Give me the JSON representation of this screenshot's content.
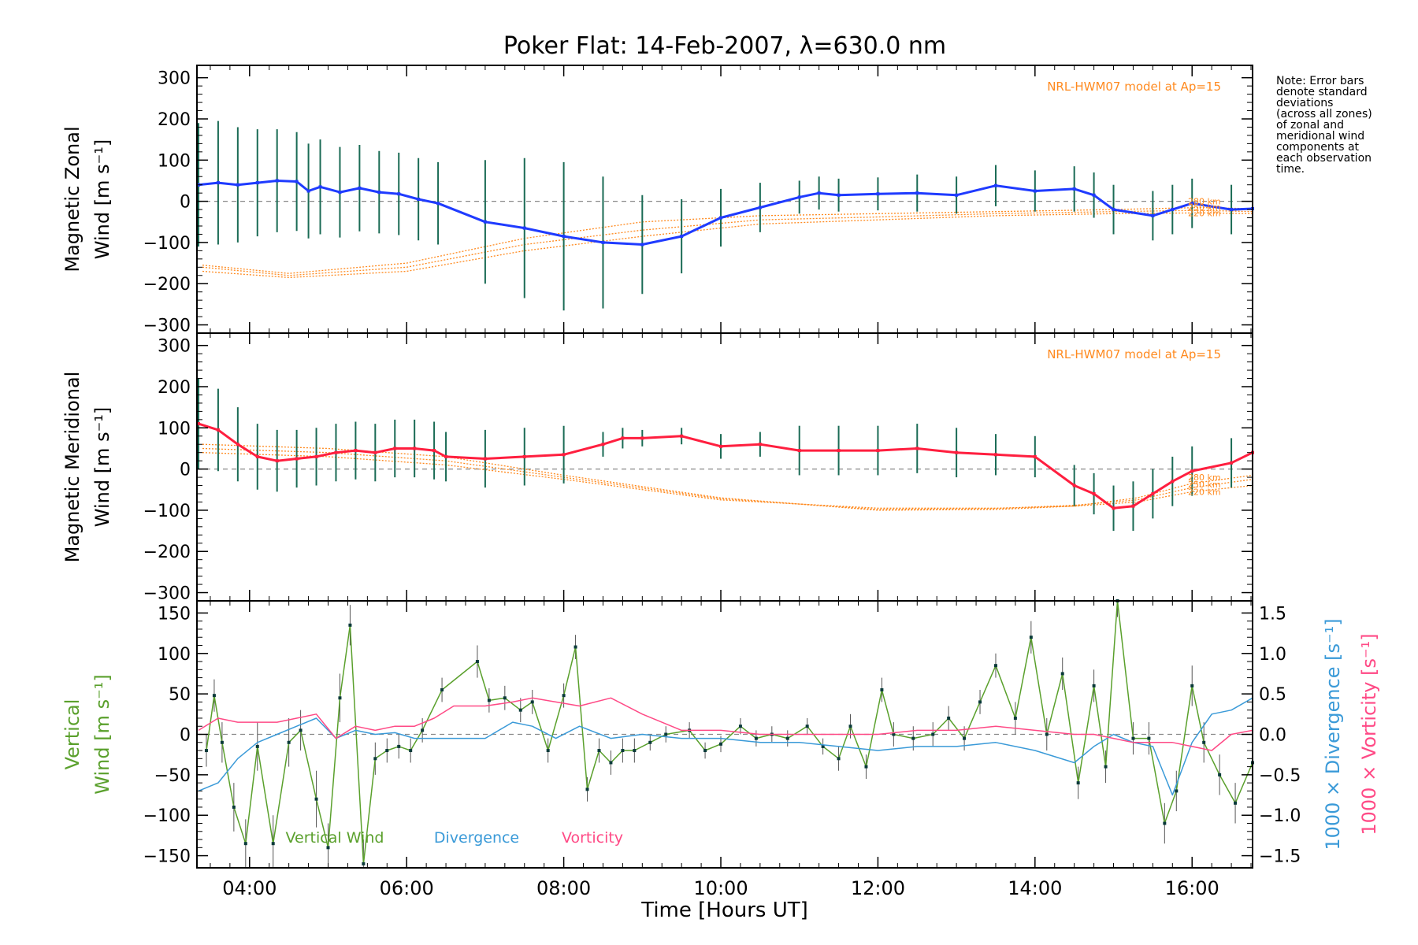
{
  "chart_data": {
    "type": "line",
    "title": "Poker Flat: 14-Feb-2007, λ=630.0 nm",
    "xlabel": "Time [Hours UT]",
    "xlim": [
      3.33,
      16.77
    ],
    "xticks": [
      4,
      6,
      8,
      10,
      12,
      14,
      16
    ],
    "xtick_labels": [
      "04:00",
      "06:00",
      "08:00",
      "10:00",
      "12:00",
      "14:00",
      "16:00"
    ],
    "note_lines": [
      "Note: Error bars",
      "denote standard",
      "deviations",
      "(across all zones)",
      "of zonal and",
      "meridional wind",
      "components at",
      "each observation",
      "time."
    ],
    "colors": {
      "zonal": "#1f3bff",
      "meridional": "#ff1f3f",
      "vertical": "#5aa02c",
      "divergence": "#3a9ad8",
      "vorticity": "#ff4a86",
      "model": "#ff8a1f",
      "errorbar": "#1a6b55"
    },
    "panels": [
      {
        "id": "zonal",
        "ylabel_line1": "Magnetic Zonal",
        "ylabel_line2": "Wind [m s⁻¹]",
        "ylim": [
          -320,
          330
        ],
        "yticks": [
          300,
          200,
          100,
          0,
          -100,
          -200,
          -300
        ],
        "ytick_labels": [
          "300",
          "200",
          "100",
          "0",
          "−100",
          "−200",
          "−300"
        ],
        "model_label": "NRL-HWM07 model at Ap=15",
        "model_heights": [
          "280 km",
          "250 km",
          "220 km"
        ],
        "series": [
          {
            "name": "Zonal wind",
            "x": [
              3.35,
              3.6,
              3.85,
              4.1,
              4.35,
              4.6,
              4.75,
              4.9,
              5.15,
              5.4,
              5.65,
              5.9,
              6.15,
              6.4,
              7,
              7.5,
              8,
              8.5,
              9,
              9.5,
              10,
              10.5,
              11,
              11.25,
              11.5,
              12,
              12.5,
              13,
              13.5,
              14,
              14.5,
              14.75,
              15,
              15.5,
              15.75,
              16,
              16.5,
              16.77
            ],
            "y": [
              40,
              45,
              40,
              45,
              50,
              48,
              25,
              35,
              22,
              32,
              22,
              18,
              5,
              -5,
              -50,
              -65,
              -85,
              -100,
              -105,
              -85,
              -40,
              -15,
              10,
              20,
              15,
              18,
              20,
              15,
              38,
              25,
              30,
              15,
              -20,
              -35,
              -20,
              -5,
              -20,
              -18
            ],
            "err": [
              150,
              150,
              140,
              130,
              125,
              120,
              115,
              115,
              110,
              105,
              100,
              100,
              100,
              100,
              150,
              170,
              180,
              160,
              120,
              90,
              70,
              60,
              40,
              40,
              40,
              40,
              45,
              45,
              50,
              50,
              55,
              55,
              60,
              60,
              60,
              60,
              60,
              60
            ]
          }
        ],
        "model_curves": [
          {
            "height": "280 km",
            "x": [
              3.4,
              4.5,
              6,
              7.5,
              9,
              10.5,
              12,
              13.5,
              15,
              16.1,
              16.77
            ],
            "y": [
              -155,
              -175,
              -150,
              -90,
              -50,
              -35,
              -30,
              -25,
              -20,
              -15,
              -18
            ]
          },
          {
            "height": "250 km",
            "x": [
              3.4,
              4.5,
              6,
              7.5,
              9,
              10.5,
              12,
              13.5,
              15,
              16.1,
              16.77
            ],
            "y": [
              -160,
              -180,
              -160,
              -105,
              -70,
              -45,
              -38,
              -30,
              -25,
              -22,
              -25
            ]
          },
          {
            "height": "220 km",
            "x": [
              3.4,
              4.5,
              6,
              7.5,
              9,
              10.5,
              12,
              13.5,
              15,
              16.1,
              16.77
            ],
            "y": [
              -170,
              -185,
              -170,
              -120,
              -85,
              -55,
              -45,
              -35,
              -30,
              -28,
              -30
            ]
          }
        ]
      },
      {
        "id": "meridional",
        "ylabel_line1": "Magnetic Meridional",
        "ylabel_line2": "Wind [m s⁻¹]",
        "ylim": [
          -320,
          330
        ],
        "yticks": [
          300,
          200,
          100,
          0,
          -100,
          -200,
          -300
        ],
        "ytick_labels": [
          "300",
          "200",
          "100",
          "0",
          "−100",
          "−200",
          "−300"
        ],
        "model_label": "NRL-HWM07 model at Ap=15",
        "model_heights": [
          "280 km",
          "250 km",
          "220 km"
        ],
        "series": [
          {
            "name": "Meridional wind",
            "x": [
              3.35,
              3.6,
              3.85,
              4.1,
              4.35,
              4.6,
              4.85,
              5.1,
              5.35,
              5.6,
              5.85,
              6.1,
              6.35,
              6.5,
              7,
              7.5,
              8,
              8.5,
              8.75,
              9,
              9.5,
              10,
              10.5,
              11,
              11.5,
              12,
              12.5,
              13,
              13.5,
              14,
              14.5,
              14.75,
              15,
              15.25,
              15.5,
              15.75,
              16,
              16.5,
              16.77
            ],
            "y": [
              110,
              95,
              60,
              30,
              20,
              25,
              30,
              40,
              45,
              40,
              50,
              50,
              45,
              30,
              25,
              30,
              35,
              60,
              75,
              75,
              80,
              55,
              60,
              45,
              45,
              45,
              50,
              40,
              35,
              30,
              -40,
              -60,
              -95,
              -90,
              -60,
              -30,
              -5,
              15,
              40
            ],
            "err": [
              110,
              100,
              90,
              80,
              75,
              70,
              70,
              70,
              70,
              70,
              70,
              70,
              70,
              60,
              70,
              70,
              70,
              30,
              25,
              20,
              20,
              30,
              30,
              60,
              60,
              60,
              60,
              60,
              50,
              50,
              50,
              50,
              55,
              60,
              60,
              60,
              60,
              60,
              60
            ]
          }
        ],
        "model_curves": [
          {
            "height": "280 km",
            "x": [
              3.4,
              5,
              6.5,
              8,
              10,
              12,
              13.5,
              14.5,
              15.3,
              16,
              16.77
            ],
            "y": [
              40,
              30,
              10,
              -25,
              -75,
              -95,
              -95,
              -90,
              -70,
              -35,
              -15
            ]
          },
          {
            "height": "250 km",
            "x": [
              3.4,
              5,
              6.5,
              8,
              10,
              12,
              13.5,
              14.5,
              15.3,
              16,
              16.77
            ],
            "y": [
              50,
              40,
              20,
              -20,
              -72,
              -98,
              -96,
              -88,
              -75,
              -45,
              -25
            ]
          },
          {
            "height": "220 km",
            "x": [
              3.4,
              5,
              6.5,
              8,
              10,
              12,
              13.5,
              14.5,
              15.3,
              16,
              16.77
            ],
            "y": [
              60,
              50,
              30,
              -15,
              -70,
              -100,
              -98,
              -90,
              -80,
              -55,
              -40
            ]
          }
        ]
      },
      {
        "id": "vertical",
        "ylabel_line1": "Vertical",
        "ylabel_line2": "Wind [m s⁻¹]",
        "ylim": [
          -165,
          165
        ],
        "yticks": [
          150,
          100,
          50,
          0,
          -50,
          -100,
          -150
        ],
        "ytick_labels": [
          "150",
          "100",
          "50",
          "0",
          "−50",
          "−100",
          "−150"
        ],
        "right_ylim": [
          -1.65,
          1.65
        ],
        "right_yticks": [
          1.5,
          1.0,
          0.5,
          0.0,
          -0.5,
          -1.0,
          -1.5
        ],
        "right_ytick_labels": [
          "1.5",
          "1.0",
          "0.5",
          "0.0",
          "−0.5",
          "−1.0",
          "−1.5"
        ],
        "right_ylabel_div": "1000 × Divergence [s⁻¹]",
        "right_ylabel_vor": "1000 × Vorticity [s⁻¹]",
        "legend": [
          "Vertical Wind",
          "Divergence",
          "Vorticity"
        ],
        "series": [
          {
            "name": "Vertical Wind",
            "axis": "left",
            "x": [
              3.45,
              3.55,
              3.65,
              3.8,
              3.95,
              4.1,
              4.3,
              4.5,
              4.65,
              4.85,
              5.0,
              5.15,
              5.28,
              5.45,
              5.6,
              5.75,
              5.9,
              6.05,
              6.2,
              6.45,
              6.9,
              7.05,
              7.25,
              7.45,
              7.6,
              7.8,
              8.0,
              8.15,
              8.3,
              8.45,
              8.6,
              8.75,
              8.9,
              9.1,
              9.3,
              9.6,
              9.8,
              10.0,
              10.25,
              10.45,
              10.65,
              10.85,
              11.1,
              11.3,
              11.5,
              11.65,
              11.85,
              12.05,
              12.2,
              12.45,
              12.7,
              12.9,
              13.1,
              13.3,
              13.5,
              13.75,
              13.95,
              14.15,
              14.35,
              14.55,
              14.75,
              14.9,
              15.05,
              15.25,
              15.45,
              15.65,
              15.8,
              16.0,
              16.15,
              16.35,
              16.55,
              16.77
            ],
            "y": [
              -20,
              48,
              -10,
              -90,
              -135,
              -15,
              -135,
              -10,
              5,
              -80,
              -140,
              45,
              135,
              -160,
              -30,
              -20,
              -15,
              -20,
              5,
              55,
              90,
              42,
              45,
              30,
              40,
              -20,
              48,
              108,
              -68,
              -20,
              -35,
              -20,
              -20,
              -10,
              0,
              5,
              -20,
              -12,
              10,
              -5,
              0,
              -5,
              10,
              -15,
              -30,
              10,
              -40,
              55,
              0,
              -5,
              0,
              20,
              -5,
              40,
              85,
              20,
              120,
              0,
              75,
              -60,
              60,
              -40,
              165,
              -5,
              -5,
              -110,
              -70,
              60,
              -10,
              -50,
              -85,
              -35
            ],
            "err": [
              20,
              20,
              25,
              30,
              30,
              30,
              35,
              30,
              25,
              35,
              30,
              30,
              25,
              30,
              20,
              15,
              15,
              15,
              15,
              15,
              20,
              15,
              15,
              15,
              15,
              15,
              15,
              15,
              15,
              15,
              15,
              15,
              15,
              10,
              10,
              10,
              10,
              10,
              10,
              10,
              10,
              10,
              10,
              10,
              15,
              15,
              15,
              15,
              15,
              15,
              15,
              15,
              15,
              15,
              15,
              20,
              20,
              20,
              20,
              20,
              20,
              20,
              20,
              20,
              20,
              25,
              25,
              25,
              25,
              25,
              25,
              25
            ]
          },
          {
            "name": "Divergence",
            "axis": "right",
            "x": [
              3.35,
              3.6,
              3.85,
              4.1,
              4.35,
              4.6,
              4.85,
              5.1,
              5.35,
              5.6,
              5.85,
              6.1,
              6.35,
              6.6,
              7,
              7.35,
              7.6,
              7.9,
              8.2,
              8.6,
              9,
              9.5,
              10,
              10.5,
              11,
              11.5,
              12,
              12.5,
              13,
              13.5,
              14,
              14.5,
              14.75,
              15,
              15.25,
              15.5,
              15.75,
              16,
              16.25,
              16.5,
              16.77
            ],
            "y": [
              -0.7,
              -0.6,
              -0.3,
              -0.1,
              0.0,
              0.1,
              0.2,
              -0.05,
              0.05,
              0.0,
              0.02,
              -0.05,
              -0.05,
              -0.05,
              -0.05,
              0.15,
              0.1,
              -0.05,
              0.1,
              -0.05,
              0.0,
              -0.05,
              -0.05,
              -0.1,
              -0.1,
              -0.15,
              -0.2,
              -0.15,
              -0.15,
              -0.1,
              -0.2,
              -0.35,
              -0.15,
              0.0,
              -0.1,
              -0.15,
              -0.75,
              -0.1,
              0.25,
              0.3,
              0.45
            ]
          },
          {
            "name": "Vorticity",
            "axis": "right",
            "x": [
              3.35,
              3.6,
              3.85,
              4.1,
              4.35,
              4.6,
              4.85,
              5.1,
              5.35,
              5.6,
              5.85,
              6.1,
              6.35,
              6.6,
              7,
              7.35,
              7.6,
              7.9,
              8.2,
              8.6,
              9,
              9.5,
              10,
              10.5,
              11,
              11.5,
              12,
              12.5,
              13,
              13.5,
              14,
              14.5,
              14.75,
              15,
              15.25,
              15.5,
              15.75,
              16,
              16.25,
              16.5,
              16.77
            ],
            "y": [
              0.05,
              0.2,
              0.15,
              0.15,
              0.15,
              0.2,
              0.25,
              -0.05,
              0.1,
              0.05,
              0.1,
              0.1,
              0.2,
              0.35,
              0.35,
              0.4,
              0.45,
              0.4,
              0.35,
              0.45,
              0.25,
              0.05,
              0.05,
              0.0,
              0.0,
              0.0,
              0.0,
              0.05,
              0.05,
              0.1,
              0.05,
              0.0,
              0.0,
              -0.05,
              -0.1,
              -0.1,
              -0.1,
              -0.15,
              -0.2,
              0.0,
              0.05
            ]
          }
        ]
      }
    ]
  }
}
